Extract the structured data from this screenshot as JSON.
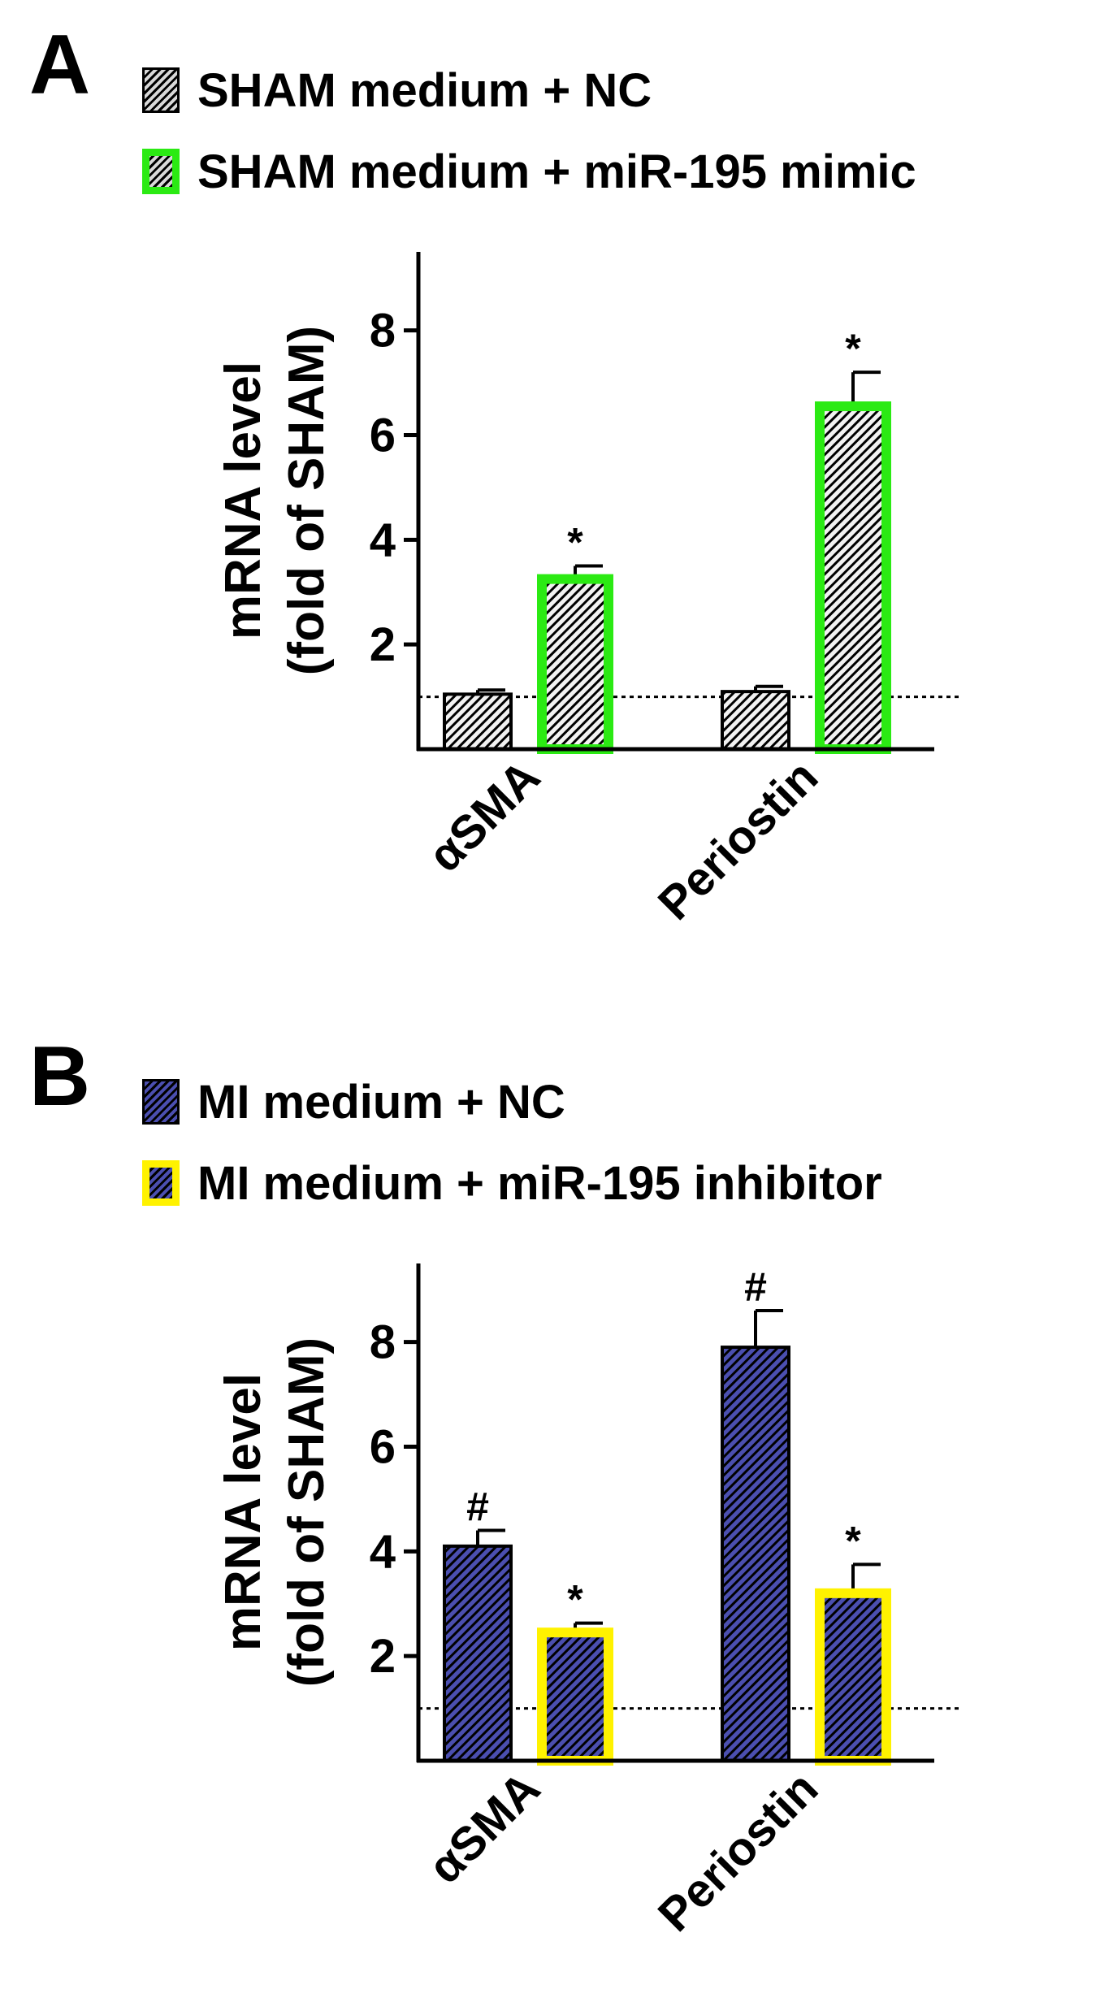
{
  "chart_data": [
    {
      "type": "bar",
      "panel": "A",
      "ylabel": [
        "mRNA level",
        "(fold of SHAM)"
      ],
      "ylim": [
        0,
        9.5
      ],
      "yticks": [
        2,
        4,
        6,
        8
      ],
      "reference_line": 1,
      "categories": [
        "αSMA",
        "Periostin"
      ],
      "series": [
        {
          "name": "SHAM medium + NC",
          "values": [
            1.05,
            1.1
          ],
          "errors": [
            0.08,
            0.1
          ],
          "marks": [
            "",
            ""
          ],
          "fill": "#f2f2f2",
          "stroke": "#000000",
          "stroke_width": "thin"
        },
        {
          "name": "SHAM medium + miR-195 mimic",
          "values": [
            3.25,
            6.55
          ],
          "errors": [
            0.25,
            0.65
          ],
          "marks": [
            "*",
            "*"
          ],
          "fill": "#f2f2f2",
          "stroke": "#2bea13",
          "stroke_width": "thick"
        }
      ]
    },
    {
      "type": "bar",
      "panel": "B",
      "ylabel": [
        "mRNA level",
        "(fold of SHAM)"
      ],
      "ylim": [
        0,
        9.5
      ],
      "yticks": [
        2,
        4,
        6,
        8
      ],
      "reference_line": 1,
      "categories": [
        "αSMA",
        "Periostin"
      ],
      "series": [
        {
          "name": "MI medium + NC",
          "values": [
            4.1,
            7.9
          ],
          "errors": [
            0.3,
            0.7
          ],
          "marks": [
            "#",
            "#"
          ],
          "fill": "#4b4fb0",
          "stroke": "#000000",
          "stroke_width": "thin"
        },
        {
          "name": "MI medium + miR-195 inhibitor",
          "values": [
            2.45,
            3.2
          ],
          "errors": [
            0.18,
            0.55
          ],
          "marks": [
            "*",
            "*"
          ],
          "fill": "#4b4fb0",
          "stroke": "#fff200",
          "stroke_width": "thick"
        }
      ]
    }
  ]
}
